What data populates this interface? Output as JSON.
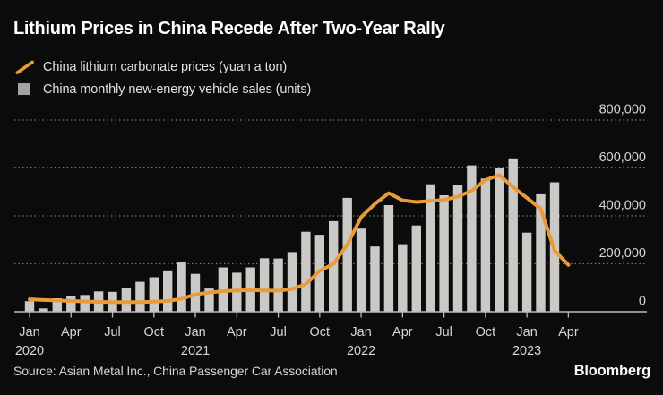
{
  "title": "Lithium Prices in China Recede After Two-Year Rally",
  "legend": [
    {
      "label": "China lithium carbonate prices (yuan a ton)",
      "icon": "orange-slash-icon",
      "color": "#E99B38"
    },
    {
      "label": "China monthly new-energy vehicle sales (units)",
      "icon": "gray-square-icon",
      "color": "#A6A4A1"
    }
  ],
  "source": "Source: Asian Metal Inc., China Passenger Car Association",
  "brand": "Bloomberg",
  "colors": {
    "background": "#0B0B0B",
    "title_text": "#FFFFFF",
    "legend_text": "#E4E1DC",
    "axis_text": "#D9D6D1",
    "gridline": "#7E7E7E",
    "axis_line": "#BDBBB8",
    "line_series": "#E99B38",
    "bar_series": "#CBC9C6",
    "source_text": "#D7D4CF",
    "brand_text": "#FBFAF8"
  },
  "chart_data": {
    "type": "combo",
    "title": "Lithium Prices in China Recede After Two-Year Rally",
    "grid": "horizontal-dotted",
    "legend_position": "top-left",
    "ylim": [
      0,
      800000
    ],
    "months": [
      "Jan 2020",
      "Feb 2020",
      "Mar 2020",
      "Apr 2020",
      "May 2020",
      "Jun 2020",
      "Jul 2020",
      "Aug 2020",
      "Sep 2020",
      "Oct 2020",
      "Nov 2020",
      "Dec 2020",
      "Jan 2021",
      "Feb 2021",
      "Mar 2021",
      "Apr 2021",
      "May 2021",
      "Jun 2021",
      "Jul 2021",
      "Aug 2021",
      "Sep 2021",
      "Oct 2021",
      "Nov 2021",
      "Dec 2021",
      "Jan 2022",
      "Feb 2022",
      "Mar 2022",
      "Apr 2022",
      "May 2022",
      "Jun 2022",
      "Jul 2022",
      "Aug 2022",
      "Sep 2022",
      "Oct 2022",
      "Nov 2022",
      "Dec 2022",
      "Jan 2023",
      "Feb 2023",
      "Mar 2023",
      "Apr 2023"
    ],
    "y_ticks": [
      {
        "value": 0,
        "label": "0"
      },
      {
        "value": 200000,
        "label": "200,000"
      },
      {
        "value": 400000,
        "label": "400,000"
      },
      {
        "value": 600000,
        "label": "600,000"
      },
      {
        "value": 800000,
        "label": "800,000"
      }
    ],
    "x_ticks": [
      {
        "month_index": 0,
        "label": "Jan",
        "year": "2020"
      },
      {
        "month_index": 3,
        "label": "Apr"
      },
      {
        "month_index": 6,
        "label": "Jul"
      },
      {
        "month_index": 9,
        "label": "Oct"
      },
      {
        "month_index": 12,
        "label": "Jan",
        "year": "2021"
      },
      {
        "month_index": 15,
        "label": "Apr"
      },
      {
        "month_index": 18,
        "label": "Jul"
      },
      {
        "month_index": 21,
        "label": "Oct"
      },
      {
        "month_index": 24,
        "label": "Jan",
        "year": "2022"
      },
      {
        "month_index": 27,
        "label": "Apr"
      },
      {
        "month_index": 30,
        "label": "Jul"
      },
      {
        "month_index": 33,
        "label": "Oct"
      },
      {
        "month_index": 36,
        "label": "Jan",
        "year": "2023"
      },
      {
        "month_index": 39,
        "label": "Apr"
      }
    ],
    "series": [
      {
        "name": "China lithium carbonate prices (yuan a ton)",
        "type": "line",
        "unit": "yuan a ton",
        "color": "#E99B38",
        "values": [
          52000,
          49000,
          47000,
          45000,
          43000,
          41000,
          40000,
          40000,
          40000,
          42000,
          45000,
          54000,
          72000,
          80000,
          86000,
          89000,
          90000,
          89000,
          88000,
          95000,
          115000,
          170000,
          200000,
          280000,
          395000,
          450000,
          495000,
          465000,
          458000,
          462000,
          467000,
          480000,
          505000,
          550000,
          570000,
          520000,
          475000,
          430000,
          255000,
          195000
        ]
      },
      {
        "name": "China monthly new-energy vehicle sales (units)",
        "type": "bar",
        "unit": "units",
        "color": "#CBC9C6",
        "values": [
          44000,
          14000,
          56000,
          64000,
          70000,
          85000,
          83000,
          100000,
          125000,
          144000,
          169000,
          206000,
          158000,
          97000,
          185000,
          163000,
          185000,
          223000,
          222000,
          249000,
          334000,
          321000,
          378000,
          475000,
          347000,
          272000,
          445000,
          282000,
          360000,
          532000,
          486000,
          530000,
          611000,
          556000,
          598000,
          640000,
          330000,
          490000,
          540000
        ]
      }
    ]
  }
}
